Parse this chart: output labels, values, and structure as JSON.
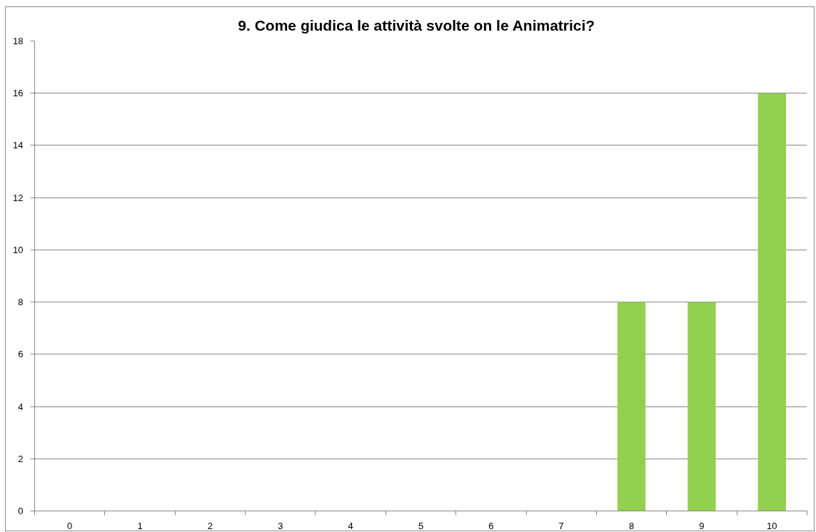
{
  "chart_data": {
    "type": "bar",
    "title": "9.   Come giudica le attività svolte on le Animatrici?",
    "categories": [
      "0",
      "1",
      "2",
      "3",
      "4",
      "5",
      "6",
      "7",
      "8",
      "9",
      "10"
    ],
    "values": [
      0,
      0,
      0,
      0,
      0,
      0,
      0,
      0,
      8,
      8,
      16
    ],
    "color": "#92d050",
    "ylim": [
      0,
      18
    ],
    "yticks": [
      0,
      2,
      4,
      6,
      8,
      10,
      12,
      14,
      16,
      18
    ],
    "grid": "y"
  }
}
